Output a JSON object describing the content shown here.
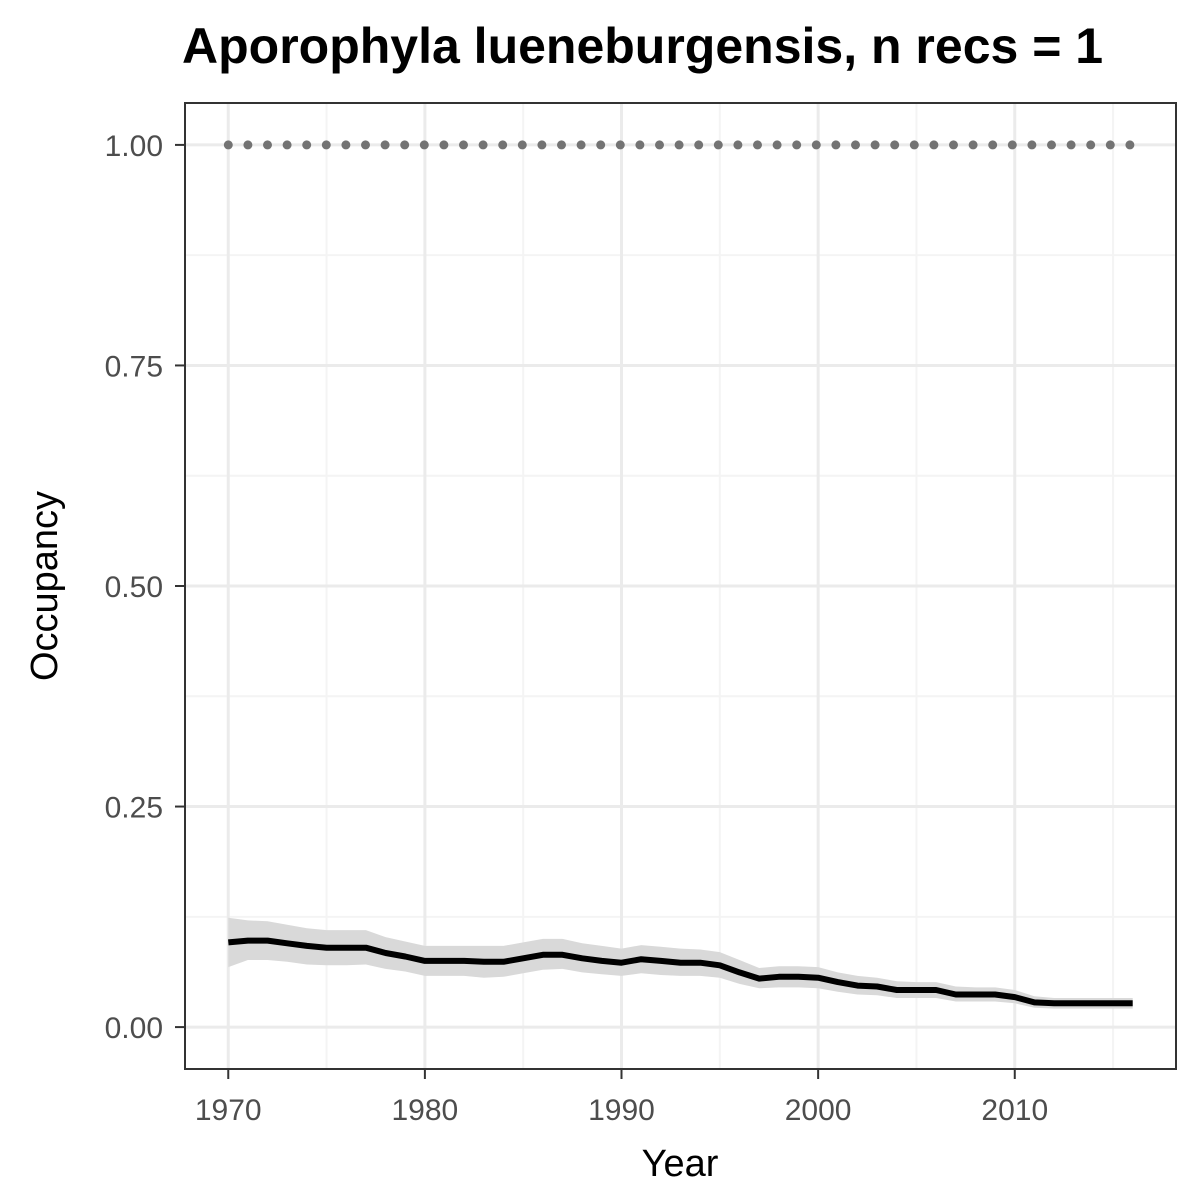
{
  "chart_data": {
    "type": "line",
    "title": "Aporophyla lueneburgensis, n recs = 1",
    "xlabel": "Year",
    "ylabel": "Occupancy",
    "xlim": [
      1967.8,
      2018.2
    ],
    "ylim": [
      -0.0475,
      1.0475
    ],
    "x_ticks": [
      1970,
      1980,
      1990,
      2000,
      2010
    ],
    "x_tick_labels": [
      "1970",
      "1980",
      "1990",
      "2000",
      "2010"
    ],
    "y_ticks": [
      0.0,
      0.25,
      0.5,
      0.75,
      1.0
    ],
    "y_tick_labels": [
      "0.00",
      "0.25",
      "0.50",
      "0.75",
      "1.00"
    ],
    "grid": true,
    "colors": {
      "mean_line": "#000000",
      "ribbon": "#d9d9d9",
      "dotted_line": "#737373",
      "grid_major": "#ebebeb",
      "grid_minor": "#f4f4f4",
      "panel_border": "#333333"
    },
    "x": [
      1970,
      1971,
      1972,
      1973,
      1974,
      1975,
      1976,
      1977,
      1978,
      1979,
      1980,
      1981,
      1982,
      1983,
      1984,
      1985,
      1986,
      1987,
      1988,
      1989,
      1990,
      1991,
      1992,
      1993,
      1994,
      1995,
      1996,
      1997,
      1998,
      1999,
      2000,
      2001,
      2002,
      2003,
      2004,
      2005,
      2006,
      2007,
      2008,
      2009,
      2010,
      2011,
      2012,
      2013,
      2014,
      2015,
      2016
    ],
    "series": [
      {
        "type": "line",
        "style": "dotted",
        "values": [
          1,
          1,
          1,
          1,
          1,
          1,
          1,
          1,
          1,
          1,
          1,
          1,
          1,
          1,
          1,
          1,
          1,
          1,
          1,
          1,
          1,
          1,
          1,
          1,
          1,
          1,
          1,
          1,
          1,
          1,
          1,
          1,
          1,
          1,
          1,
          1,
          1,
          1,
          1,
          1,
          1,
          1,
          1,
          1,
          1,
          1,
          1
        ]
      },
      {
        "type": "line",
        "style": "solid",
        "values": [
          0.096,
          0.098,
          0.098,
          0.095,
          0.092,
          0.09,
          0.09,
          0.09,
          0.084,
          0.08,
          0.075,
          0.075,
          0.075,
          0.074,
          0.074,
          0.078,
          0.082,
          0.082,
          0.078,
          0.075,
          0.073,
          0.077,
          0.075,
          0.073,
          0.073,
          0.07,
          0.062,
          0.055,
          0.057,
          0.057,
          0.056,
          0.051,
          0.047,
          0.046,
          0.042,
          0.042,
          0.042,
          0.037,
          0.037,
          0.037,
          0.034,
          0.028,
          0.027,
          0.027,
          0.027,
          0.027,
          0.027
        ],
        "lower": [
          0.068,
          0.076,
          0.076,
          0.074,
          0.071,
          0.07,
          0.07,
          0.071,
          0.066,
          0.063,
          0.058,
          0.058,
          0.058,
          0.056,
          0.057,
          0.061,
          0.065,
          0.066,
          0.062,
          0.06,
          0.058,
          0.061,
          0.059,
          0.058,
          0.058,
          0.056,
          0.049,
          0.044,
          0.045,
          0.045,
          0.044,
          0.04,
          0.037,
          0.036,
          0.033,
          0.033,
          0.033,
          0.029,
          0.029,
          0.029,
          0.027,
          0.022,
          0.021,
          0.021,
          0.021,
          0.021,
          0.021
        ],
        "upper": [
          0.124,
          0.121,
          0.12,
          0.116,
          0.112,
          0.11,
          0.11,
          0.11,
          0.102,
          0.097,
          0.092,
          0.092,
          0.092,
          0.092,
          0.092,
          0.096,
          0.1,
          0.1,
          0.095,
          0.092,
          0.089,
          0.093,
          0.091,
          0.089,
          0.088,
          0.085,
          0.076,
          0.067,
          0.069,
          0.069,
          0.068,
          0.062,
          0.058,
          0.056,
          0.052,
          0.051,
          0.051,
          0.046,
          0.045,
          0.045,
          0.042,
          0.035,
          0.033,
          0.033,
          0.033,
          0.033,
          0.033
        ]
      }
    ]
  }
}
